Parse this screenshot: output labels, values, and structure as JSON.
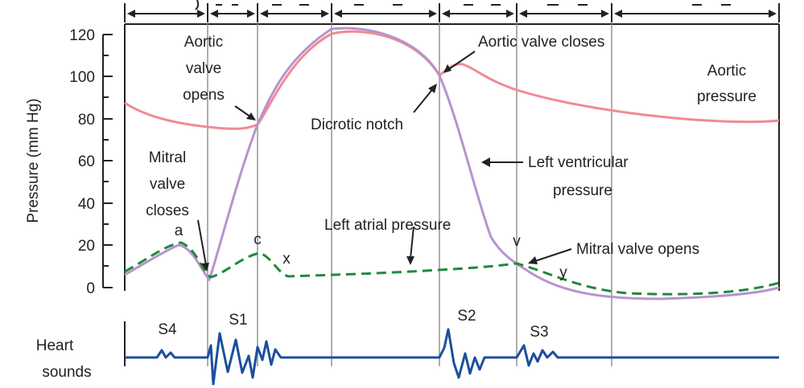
{
  "axis": {
    "ylabel": "Pressure (mm Hg)",
    "yticks": [
      "120",
      "100",
      "80",
      "60",
      "40",
      "20",
      "0"
    ]
  },
  "annotations": {
    "aortic_valve_opens": [
      "Aortic",
      "valve",
      "opens"
    ],
    "aortic_valve_closes": "Aortic valve closes",
    "aortic_pressure": [
      "Aortic",
      "pressure"
    ],
    "dicrotic_notch": "Dicrotic notch",
    "mitral_valve_closes": [
      "Mitral",
      "valve",
      "closes"
    ],
    "left_ventricular_pressure": [
      "Left ventricular",
      "pressure"
    ],
    "left_atrial_pressure": "Left atrial pressure",
    "mitral_valve_opens": "Mitral valve opens",
    "wave_a": "a",
    "wave_c": "c",
    "wave_x": "x",
    "wave_v": "v",
    "wave_y": "y"
  },
  "heart_sounds": {
    "label": [
      "Heart",
      "sounds"
    ],
    "s4": "S4",
    "s1": "S1",
    "s2": "S2",
    "s3": "S3"
  },
  "colors": {
    "aortic": "#f08a96",
    "ventricular": "#b893cc",
    "atrial": "#1f8a3a",
    "sounds": "#1b4f9c",
    "grid": "#9a9a9a",
    "axis": "#222222"
  }
}
